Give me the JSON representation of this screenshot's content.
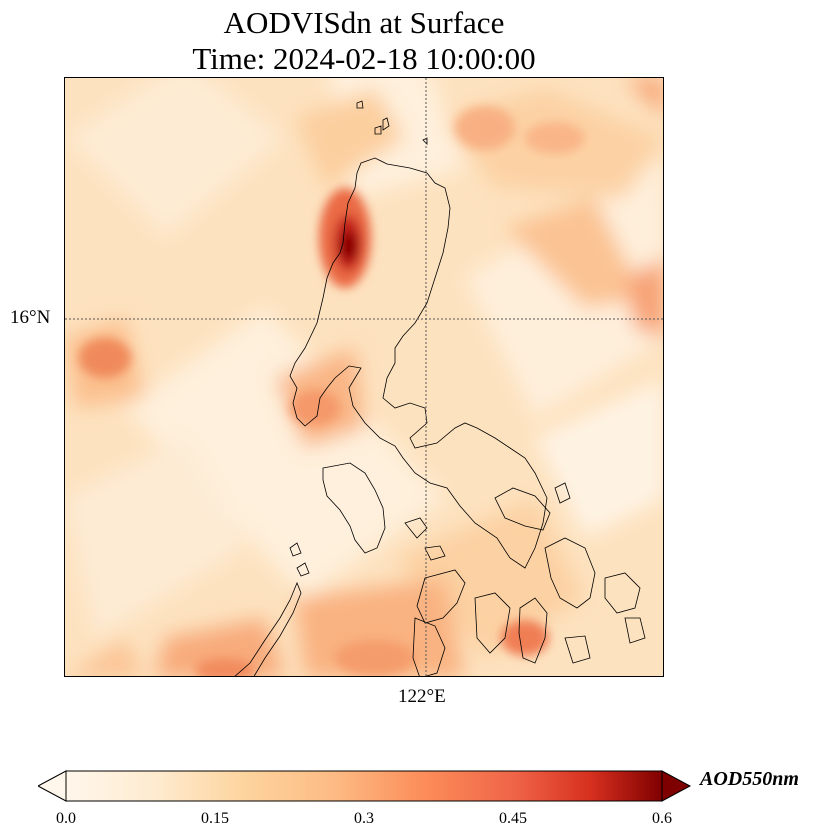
{
  "title": {
    "line1": "AODVISdn at Surface",
    "line2": "Time: 2024-02-18 10:00:00"
  },
  "map": {
    "region": "Luzon, Philippines",
    "gridlines": "dotted",
    "lat_label": "16°N",
    "lon_label": "122°E",
    "features": [
      "coastlines",
      "aerosol-optical-depth-field"
    ]
  },
  "colorbar": {
    "colormap": "OrRd",
    "extend": "both",
    "ticks": [
      "0.0",
      "0.15",
      "0.3",
      "0.45",
      "0.6"
    ],
    "min": 0.0,
    "max": 0.6,
    "label": "AOD550nm",
    "colors": {
      "low": "#fff7ec",
      "mid_low": "#fdd49e",
      "mid": "#fc8d59",
      "mid_high": "#d7301f",
      "high": "#7f0000"
    }
  }
}
